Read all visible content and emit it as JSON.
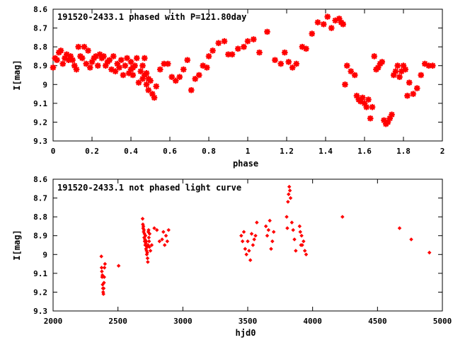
{
  "chart_data": [
    {
      "type": "scatter",
      "title": "191520-2433.1 phased with P=121.80day",
      "xlabel": "phase",
      "ylabel": "I[mag]",
      "xlim": [
        0,
        2
      ],
      "ylim": [
        9.3,
        8.6
      ],
      "y_inverted": true,
      "x_ticks": [
        "0",
        "0.2",
        "0.4",
        "0.6",
        "0.8",
        "1",
        "1.2",
        "1.4",
        "1.6",
        "1.8",
        "2"
      ],
      "y_ticks": [
        "8.6",
        "8.7",
        "8.8",
        "8.9",
        "9",
        "9.1",
        "9.2",
        "9.3"
      ],
      "marker": "star",
      "color": "#ff0000",
      "grid": false,
      "x": [
        0.0,
        0.01,
        0.02,
        0.03,
        0.04,
        0.05,
        0.06,
        0.07,
        0.08,
        0.09,
        0.1,
        0.11,
        0.12,
        0.13,
        0.14,
        0.15,
        0.16,
        0.17,
        0.18,
        0.19,
        0.2,
        0.21,
        0.22,
        0.23,
        0.24,
        0.25,
        0.26,
        0.27,
        0.28,
        0.29,
        0.3,
        0.31,
        0.32,
        0.33,
        0.34,
        0.35,
        0.36,
        0.37,
        0.38,
        0.39,
        0.4,
        0.4,
        0.41,
        0.41,
        0.42,
        0.43,
        0.44,
        0.45,
        0.46,
        0.46,
        0.47,
        0.47,
        0.48,
        0.48,
        0.49,
        0.49,
        0.5,
        0.51,
        0.52,
        0.53,
        0.55,
        0.57,
        0.59,
        0.61,
        0.63,
        0.65,
        0.67,
        0.69,
        0.71,
        0.73,
        0.75,
        0.77,
        0.79,
        0.8,
        0.82,
        0.85,
        0.88,
        0.9,
        0.92,
        0.95,
        0.98,
        1.0,
        1.03,
        1.06,
        1.1,
        1.14,
        1.17,
        1.19,
        1.21,
        1.23,
        1.25,
        1.28,
        1.3,
        1.33,
        1.36,
        1.39,
        1.41,
        1.43,
        1.45,
        1.47,
        1.48,
        1.49,
        1.5,
        1.51,
        1.53,
        1.55,
        1.56,
        1.57,
        1.58,
        1.59,
        1.6,
        1.61,
        1.62,
        1.63,
        1.64,
        1.65,
        1.66,
        1.67,
        1.68,
        1.69,
        1.7,
        1.71,
        1.72,
        1.73,
        1.74,
        1.75,
        1.76,
        1.77,
        1.78,
        1.79,
        1.8,
        1.81,
        1.82,
        1.83,
        1.85,
        1.87,
        1.89,
        1.91,
        1.93,
        1.95
      ],
      "y": [
        8.91,
        8.86,
        8.87,
        8.83,
        8.82,
        8.89,
        8.86,
        8.84,
        8.87,
        8.85,
        8.87,
        8.9,
        8.92,
        8.8,
        8.85,
        8.86,
        8.8,
        8.89,
        8.82,
        8.91,
        8.88,
        8.86,
        8.85,
        8.9,
        8.84,
        8.86,
        8.85,
        8.9,
        8.88,
        8.87,
        8.92,
        8.85,
        8.93,
        8.89,
        8.91,
        8.87,
        8.95,
        8.9,
        8.86,
        8.94,
        8.92,
        8.88,
        8.91,
        8.95,
        8.9,
        8.86,
        8.99,
        8.93,
        8.9,
        8.97,
        8.95,
        8.86,
        9.0,
        8.94,
        8.97,
        9.03,
        8.98,
        9.05,
        9.07,
        9.01,
        8.92,
        8.89,
        8.89,
        8.96,
        8.98,
        8.96,
        8.92,
        8.87,
        9.03,
        8.97,
        8.95,
        8.9,
        8.91,
        8.85,
        8.82,
        8.78,
        8.77,
        8.84,
        8.84,
        8.81,
        8.8,
        8.77,
        8.76,
        8.83,
        8.72,
        8.87,
        8.89,
        8.83,
        8.88,
        8.91,
        8.89,
        8.8,
        8.81,
        8.73,
        8.67,
        8.68,
        8.64,
        8.7,
        8.66,
        8.65,
        8.67,
        8.68,
        9.0,
        8.9,
        8.93,
        8.95,
        9.06,
        9.08,
        9.09,
        9.07,
        9.1,
        9.12,
        9.08,
        9.18,
        9.12,
        8.85,
        8.92,
        8.91,
        8.89,
        8.88,
        9.19,
        9.21,
        9.2,
        9.18,
        9.16,
        8.95,
        8.93,
        8.9,
        8.96,
        8.93,
        8.9,
        8.92,
        9.06,
        8.99,
        9.05,
        9.02,
        8.95,
        8.89,
        8.9,
        8.9
      ]
    },
    {
      "type": "scatter",
      "title": "191520-2433.1 not phased light curve",
      "xlabel": "hjd0",
      "ylabel": "I[mag]",
      "xlim": [
        2000,
        5000
      ],
      "ylim": [
        9.3,
        8.6
      ],
      "y_inverted": true,
      "x_ticks": [
        "2000",
        "2500",
        "3000",
        "3500",
        "4000",
        "4500",
        "5000"
      ],
      "y_ticks": [
        "8.6",
        "8.7",
        "8.8",
        "8.9",
        "9",
        "9.1",
        "9.2",
        "9.3"
      ],
      "marker": "diamond",
      "color": "#ff0000",
      "grid": false,
      "x": [
        2372,
        2374,
        2376,
        2378,
        2380,
        2382,
        2384,
        2386,
        2388,
        2390,
        2392,
        2394,
        2396,
        2400,
        2505,
        2690,
        2692,
        2694,
        2696,
        2698,
        2700,
        2702,
        2704,
        2706,
        2708,
        2710,
        2712,
        2714,
        2716,
        2718,
        2720,
        2722,
        2724,
        2726,
        2728,
        2730,
        2732,
        2734,
        2736,
        2738,
        2740,
        2742,
        2744,
        2750,
        2760,
        2780,
        2800,
        2820,
        2840,
        2850,
        2860,
        2870,
        2880,
        2890,
        3450,
        3460,
        3470,
        3480,
        3490,
        3500,
        3510,
        3520,
        3530,
        3540,
        3550,
        3560,
        3570,
        3640,
        3650,
        3660,
        3670,
        3680,
        3690,
        3700,
        3800,
        3805,
        3810,
        3815,
        3820,
        3825,
        3830,
        3840,
        3850,
        3860,
        3870,
        3900,
        3905,
        3910,
        3915,
        3920,
        3930,
        3940,
        3950,
        4230,
        4670,
        4760,
        4900
      ],
      "y": [
        9.01,
        9.07,
        9.09,
        9.12,
        9.11,
        9.16,
        9.18,
        9.2,
        9.21,
        9.18,
        9.15,
        9.12,
        9.07,
        9.05,
        9.06,
        8.81,
        8.84,
        8.86,
        8.85,
        8.88,
        8.87,
        8.91,
        8.89,
        8.93,
        8.92,
        8.95,
        8.9,
        8.94,
        8.97,
        8.93,
        8.98,
        9.0,
        8.96,
        8.99,
        9.02,
        9.04,
        8.95,
        8.88,
        8.87,
        8.91,
        8.93,
        8.96,
        8.89,
        8.98,
        8.95,
        8.86,
        8.87,
        8.93,
        8.92,
        8.88,
        8.95,
        8.9,
        8.93,
        8.87,
        8.9,
        8.93,
        8.88,
        8.97,
        9.0,
        8.93,
        8.98,
        9.03,
        8.89,
        8.95,
        8.92,
        8.9,
        8.83,
        8.85,
        8.9,
        8.87,
        8.82,
        8.97,
        8.93,
        8.88,
        8.8,
        8.86,
        8.72,
        8.68,
        8.64,
        8.66,
        8.7,
        8.83,
        8.87,
        8.92,
        8.98,
        8.85,
        8.88,
        8.95,
        8.9,
        8.95,
        8.93,
        8.98,
        9.0,
        8.8,
        8.86,
        8.92,
        8.99
      ]
    }
  ]
}
